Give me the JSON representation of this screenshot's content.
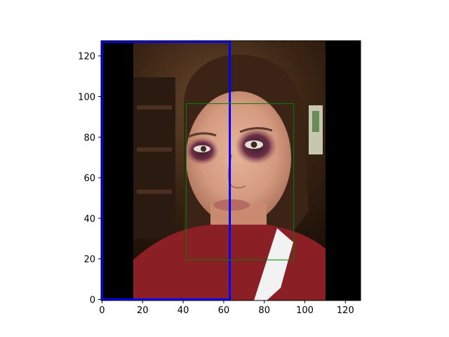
{
  "chart_data": {
    "type": "image",
    "xlim": [
      -0.5,
      127.5
    ],
    "ylim": [
      127.5,
      -0.5
    ],
    "x_ticks": [
      0,
      20,
      40,
      60,
      80,
      100,
      120
    ],
    "y_ticks": [
      0,
      20,
      40,
      60,
      80,
      100,
      120
    ],
    "x_tick_labels": [
      "0",
      "20",
      "40",
      "60",
      "80",
      "100",
      "120"
    ],
    "y_tick_labels": [
      "0",
      "20",
      "40",
      "60",
      "80",
      "100",
      "120"
    ],
    "image_subject": "close-up photo of a young woman's face with bruised eyes, wearing a dark red shirt, on a pixelated 128x128 image with black side bars",
    "left_black_bar_x": [
      -0.5,
      15.5
    ],
    "right_black_bar_x": [
      110.5,
      127.5
    ],
    "boxes": [
      {
        "id": "blue-box",
        "x0": 0,
        "y0": 0,
        "x1": 63,
        "y1": 127,
        "color": "#0000ff"
      },
      {
        "id": "green-box",
        "x0": 41.5,
        "y0": 19.5,
        "x1": 94.5,
        "y1": 96.5,
        "color": "#008000"
      }
    ]
  }
}
